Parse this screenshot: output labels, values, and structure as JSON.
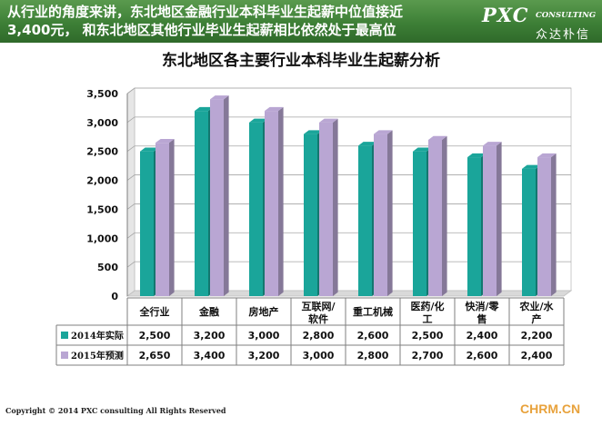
{
  "header": {
    "headline_line1": "从行业的角度来讲，东北地区金融行业本科毕业生起薪中位值接近",
    "headline_line2": "3,400元， 和东北地区其他行业毕业生起薪相比依然处于最高位",
    "logo_main": "PXC",
    "logo_sub": "CONSULTING",
    "logo_cn": "众达朴信"
  },
  "chart_data": {
    "type": "bar",
    "title": "东北地区各主要行业本科毕业生起薪分析",
    "categories": [
      [
        "全行业"
      ],
      [
        "金融"
      ],
      [
        "房地产"
      ],
      [
        "互联网/",
        "软件"
      ],
      [
        "重工机械"
      ],
      [
        "医药/化",
        "工"
      ],
      [
        "快消/零",
        "售"
      ],
      [
        "农业/水",
        "产"
      ]
    ],
    "series": [
      {
        "name": "2014年实际",
        "color": "#1aa59a",
        "values": [
          2500,
          3200,
          3000,
          2800,
          2600,
          2500,
          2400,
          2200
        ],
        "labels": [
          "2,500",
          "3,200",
          "3,000",
          "2,800",
          "2,600",
          "2,500",
          "2,400",
          "2,200"
        ]
      },
      {
        "name": "2015年预测",
        "color": "#b9a6d3",
        "values": [
          2650,
          3400,
          3200,
          3000,
          2800,
          2700,
          2600,
          2400
        ],
        "labels": [
          "2,650",
          "3,400",
          "3,200",
          "3,000",
          "2,800",
          "2,700",
          "2,600",
          "2,400"
        ]
      }
    ],
    "yticks": [
      0,
      500,
      1000,
      1500,
      2000,
      2500,
      3000,
      3500
    ],
    "ytick_labels": [
      "0",
      "500",
      "1,000",
      "1,500",
      "2,000",
      "2,500",
      "3,000",
      "3,500"
    ],
    "ylim": [
      0,
      3500
    ],
    "grid": true,
    "legend": "data-table"
  },
  "footer": {
    "copyright": "Copyright © 2014 PXC consulting All Rights Reserved",
    "site": "CHRM.CN"
  }
}
